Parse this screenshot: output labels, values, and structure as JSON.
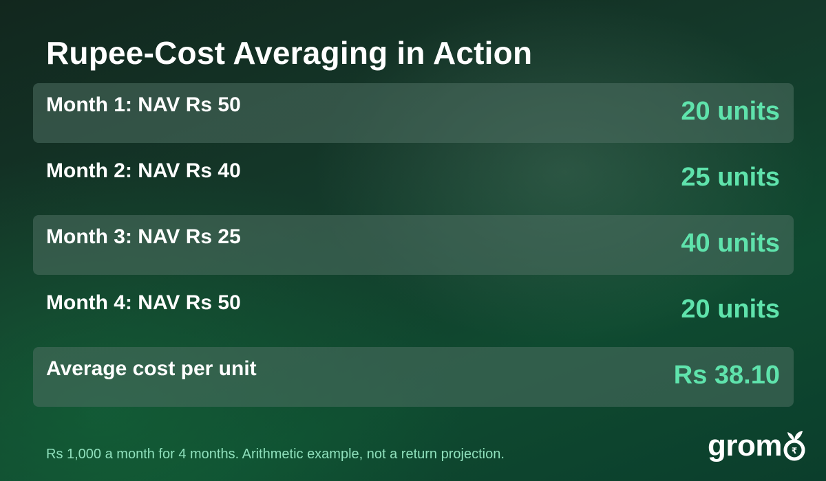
{
  "title": "Rupee-Cost Averaging in Action",
  "rows": [
    {
      "label": "Month 1: NAV Rs 50",
      "value": "20 units",
      "shaded": true
    },
    {
      "label": "Month 2: NAV Rs 40",
      "value": "25 units",
      "shaded": false
    },
    {
      "label": "Month 3: NAV Rs 25",
      "value": "40 units",
      "shaded": true
    },
    {
      "label": "Month 4: NAV Rs 50",
      "value": "20 units",
      "shaded": false
    },
    {
      "label": "Average cost per unit",
      "value": "Rs 38.10",
      "shaded": true
    }
  ],
  "footnote": "Rs 1,000 a month for 4 months. Arithmetic example, not a return projection.",
  "brand": {
    "logo_text": "grom",
    "logo_icon": "rupee-sprout-icon",
    "accent_color": "#5fe3ac",
    "text_color": "#ffffff"
  }
}
